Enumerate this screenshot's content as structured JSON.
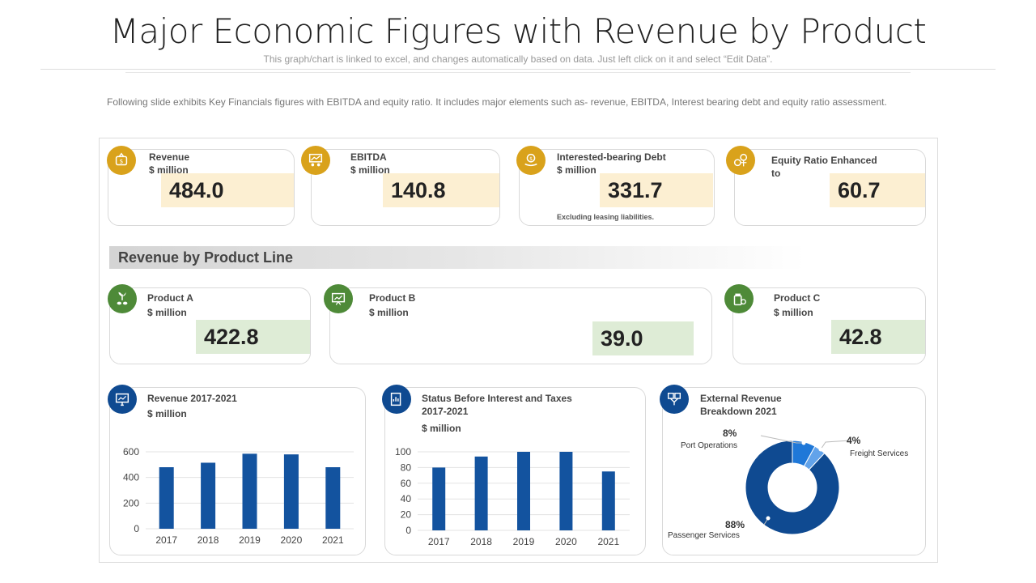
{
  "header": {
    "title": "Major Economic Figures with Revenue by Product",
    "subtitle": "This graph/chart is linked to excel, and changes automatically based on data. Just left click on it and select “Edit Data”.",
    "intro": "Following slide exhibits Key Financials figures with EBITDA and equity ratio. It includes major elements such as- revenue, EBITDA, Interest bearing debt and equity ratio assessment."
  },
  "kpis": [
    {
      "label": "Revenue",
      "unit": "$ million",
      "value": "484.0",
      "icon": "money-bag-icon"
    },
    {
      "label": "EBITDA",
      "unit": "$ million",
      "value": "140.8",
      "icon": "presentation-icon"
    },
    {
      "label": "Interested-bearing Debt",
      "unit": "$ million",
      "value": "331.7",
      "note": "Excluding leasing liabilities.",
      "icon": "coin-hand-icon"
    },
    {
      "label": "Equity Ratio Enhanced to",
      "value": "60.7",
      "icon": "coins-gear-icon"
    }
  ],
  "section": {
    "title": "Revenue by Product Line"
  },
  "products": [
    {
      "label": "Product A",
      "unit": "$ million",
      "value": "422.8",
      "icon": "plant-coins-icon"
    },
    {
      "label": "Product B",
      "unit": "$ million",
      "value": "39.0",
      "icon": "board-chart-icon"
    },
    {
      "label": "Product C",
      "unit": "$ million",
      "value": "42.8",
      "icon": "money-jar-icon"
    }
  ],
  "colors": {
    "gold": "#d9a21b",
    "green": "#4e8a38",
    "blue": "#0f4a91",
    "bar": "#13539f",
    "tan": "#fcefd2",
    "lightgreen": "#deecd6"
  },
  "chart_data": [
    {
      "type": "bar",
      "title": "Revenue 2017-2021",
      "unit": "$ million",
      "categories": [
        "2017",
        "2018",
        "2019",
        "2020",
        "2021"
      ],
      "values": [
        480,
        515,
        585,
        580,
        480
      ],
      "ylim": [
        0,
        600
      ],
      "yticks": [
        0,
        200,
        400,
        600
      ],
      "grid": true
    },
    {
      "type": "bar",
      "title": "Status Before Interest and Taxes 2017-2021",
      "unit": "$ million",
      "categories": [
        "2017",
        "2018",
        "2019",
        "2020",
        "2021"
      ],
      "values": [
        80,
        94,
        100,
        100,
        75
      ],
      "ylim": [
        0,
        100
      ],
      "yticks": [
        0,
        20,
        40,
        60,
        80,
        100
      ],
      "grid": true
    },
    {
      "type": "pie",
      "title": "External Revenue Breakdown 2021",
      "categories": [
        "Port Operations",
        "Freight Services",
        "Passenger Services"
      ],
      "values": [
        8,
        4,
        88
      ],
      "labels": [
        "8%",
        "4%",
        "88%"
      ],
      "colors": [
        "#1f78d8",
        "#62a3ea",
        "#0f4a91"
      ]
    }
  ]
}
